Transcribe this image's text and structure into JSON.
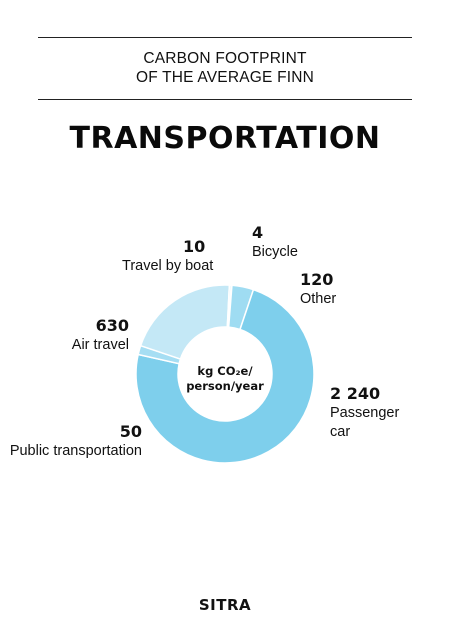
{
  "header": {
    "line1": "CARBON FOOTPRINT",
    "line2": "OF THE AVERAGE FINN"
  },
  "title": "TRANSPORTATION",
  "unit": {
    "line1": "kg CO₂e/",
    "line2": "person/year"
  },
  "logo": "SITRA",
  "colors": {
    "passenger_car": "#7ecfec",
    "public_transportation": "#a6def3",
    "air_travel": "#c4e8f6",
    "travel_by_boat": "#d8f0fa",
    "bicycle": "#1f4f8f",
    "other": "#9fdcf2"
  },
  "chart_data": {
    "type": "pie",
    "donut": true,
    "title": "TRANSPORTATION",
    "unit": "kg CO2e/person/year",
    "slices": [
      {
        "label": "Bicycle",
        "value": 4,
        "value_label": "4"
      },
      {
        "label": "Other",
        "value": 120,
        "value_label": "120"
      },
      {
        "label": "Passenger car",
        "value": 2240,
        "value_label": "2 240"
      },
      {
        "label": "Public transportation",
        "value": 50,
        "value_label": "50"
      },
      {
        "label": "Air travel",
        "value": 630,
        "value_label": "630"
      },
      {
        "label": "Travel by boat",
        "value": 10,
        "value_label": "10"
      }
    ]
  }
}
